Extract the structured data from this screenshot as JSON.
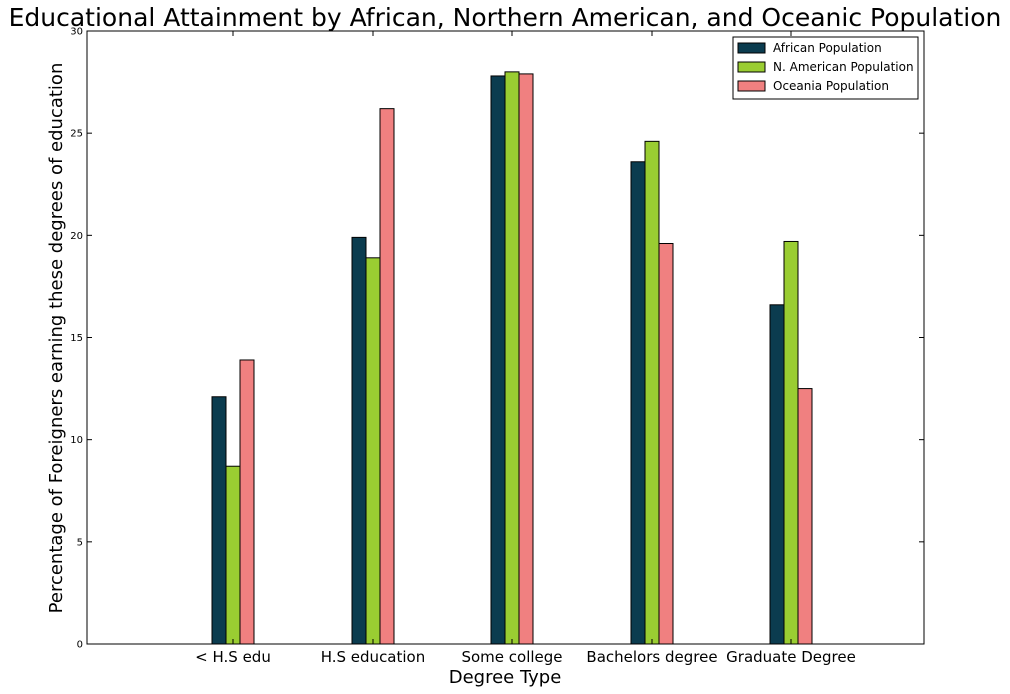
{
  "chart_data": {
    "type": "bar",
    "title": "Educational Attainment by African, Northern American, and Oceanic Population",
    "xlabel": "Degree Type",
    "ylabel": "Percentage of Foreigners earning these degrees of education",
    "categories": [
      "< H.S edu",
      "H.S education",
      "Some college",
      "Bachelors degree",
      "Graduate Degree"
    ],
    "series": [
      {
        "name": "African Population",
        "color": "#0b3c4f",
        "values": [
          12.1,
          19.9,
          27.8,
          23.6,
          16.6
        ]
      },
      {
        "name": "N. American Population",
        "color": "#9acd32",
        "values": [
          8.7,
          18.9,
          28.0,
          24.6,
          19.7
        ]
      },
      {
        "name": "Oceania Population",
        "color": "#f08080",
        "values": [
          13.9,
          26.2,
          27.9,
          19.6,
          12.5
        ]
      }
    ],
    "ylim": [
      0,
      30
    ],
    "yticks": [
      0,
      5,
      10,
      15,
      20,
      25,
      30
    ],
    "grid": false,
    "legend": "top-right"
  }
}
